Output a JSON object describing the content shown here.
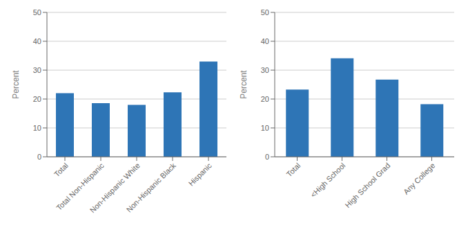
{
  "chart_data": [
    {
      "type": "bar",
      "categories": [
        "Total",
        "Total Non-Hispanic",
        "Non-Hispanic White",
        "Non-Hispanic Black",
        "Hispanic"
      ],
      "values": [
        22.0,
        18.6,
        18.0,
        22.3,
        33.0
      ],
      "ylabel": "Percent",
      "ylim": [
        0,
        50
      ],
      "yticks": [
        0,
        10,
        20,
        30,
        40,
        50
      ],
      "color": "#2E75B6",
      "grid": true
    },
    {
      "type": "bar",
      "categories": [
        "Total",
        "<High School",
        "High School Grad",
        "Any College"
      ],
      "values": [
        23.3,
        34.1,
        26.7,
        18.2
      ],
      "ylabel": "Percent",
      "ylim": [
        0,
        50
      ],
      "yticks": [
        0,
        10,
        20,
        30,
        40,
        50
      ],
      "color": "#2E75B6",
      "grid": true
    }
  ]
}
